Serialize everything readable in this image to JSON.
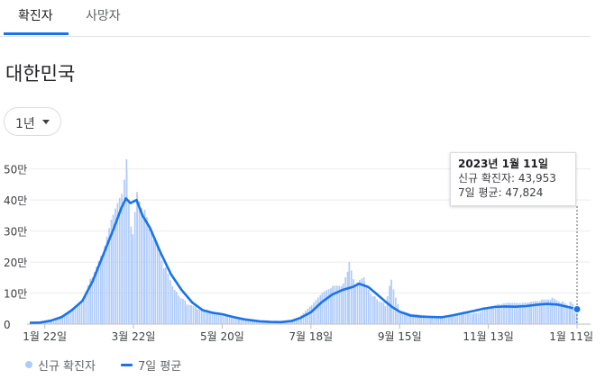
{
  "tabs": [
    {
      "label": "확진자",
      "active": true
    },
    {
      "label": "사망자",
      "active": false
    }
  ],
  "region": "대한민국",
  "period": {
    "label": "1년"
  },
  "tooltip": {
    "date": "2023년 1월 11일",
    "line1": "신규 확진자: 43,953",
    "line2": "7일 평균: 47,824"
  },
  "legend": {
    "bar_label": "신규 확진자",
    "line_label": "7일 평균"
  },
  "colors": {
    "bar": "#aecbfa",
    "line": "#1a73e8",
    "accent": "#1a73e8"
  },
  "chart_data": {
    "type": "bar",
    "title": "",
    "xlabel": "",
    "ylabel": "",
    "ylim": [
      0,
      560000
    ],
    "y_ticks": [
      {
        "value": 0,
        "label": "0"
      },
      {
        "value": 100000,
        "label": "10만"
      },
      {
        "value": 200000,
        "label": "20만"
      },
      {
        "value": 300000,
        "label": "30만"
      },
      {
        "value": 400000,
        "label": "40만"
      },
      {
        "value": 500000,
        "label": "50만"
      }
    ],
    "x_ticks": [
      {
        "date": "2022-01-22",
        "label": "1월 22일"
      },
      {
        "date": "2022-03-22",
        "label": "3월 22일"
      },
      {
        "date": "2022-05-20",
        "label": "5월 20일"
      },
      {
        "date": "2022-07-18",
        "label": "7월 18일"
      },
      {
        "date": "2022-09-15",
        "label": "9월 15일"
      },
      {
        "date": "2022-11-13",
        "label": "11월 13일"
      },
      {
        "date": "2023-01-11",
        "label": "1월 11일"
      }
    ],
    "x_range": [
      "2022-01-12",
      "2023-01-11"
    ],
    "series": [
      {
        "name": "신규 확진자",
        "type": "bar",
        "points": [
          [
            "2022-01-12",
            4000
          ],
          [
            "2022-01-26",
            13000
          ],
          [
            "2022-02-05",
            35000
          ],
          [
            "2022-02-15",
            75000
          ],
          [
            "2022-02-22",
            150000
          ],
          [
            "2022-03-01",
            210000
          ],
          [
            "2022-03-08",
            320000
          ],
          [
            "2022-03-14",
            380000
          ],
          [
            "2022-03-17",
            560000
          ],
          [
            "2022-03-21",
            300000
          ],
          [
            "2022-03-24",
            490000
          ],
          [
            "2022-03-29",
            340000
          ],
          [
            "2022-04-05",
            270000
          ],
          [
            "2022-04-12",
            190000
          ],
          [
            "2022-04-19",
            118000
          ],
          [
            "2022-04-26",
            75000
          ],
          [
            "2022-05-03",
            52000
          ],
          [
            "2022-05-10",
            40000
          ],
          [
            "2022-05-20",
            25000
          ],
          [
            "2022-05-31",
            15000
          ],
          [
            "2022-06-10",
            10000
          ],
          [
            "2022-06-25",
            7000
          ],
          [
            "2022-07-05",
            15000
          ],
          [
            "2022-07-11",
            27000
          ],
          [
            "2022-07-18",
            55000
          ],
          [
            "2022-07-25",
            90000
          ],
          [
            "2022-08-01",
            110000
          ],
          [
            "2022-08-08",
            120000
          ],
          [
            "2022-08-12",
            180000
          ],
          [
            "2022-08-16",
            115000
          ],
          [
            "2022-08-22",
            140000
          ],
          [
            "2022-08-29",
            100000
          ],
          [
            "2022-09-05",
            70000
          ],
          [
            "2022-09-09",
            160000
          ],
          [
            "2022-09-15",
            40000
          ],
          [
            "2022-09-22",
            30000
          ],
          [
            "2022-09-29",
            27000
          ],
          [
            "2022-10-06",
            22000
          ],
          [
            "2022-10-13",
            22000
          ],
          [
            "2022-10-20",
            30000
          ],
          [
            "2022-10-27",
            38000
          ],
          [
            "2022-11-03",
            40000
          ],
          [
            "2022-11-13",
            52000
          ],
          [
            "2022-11-20",
            60000
          ],
          [
            "2022-11-27",
            62000
          ],
          [
            "2022-12-04",
            60000
          ],
          [
            "2022-12-11",
            65000
          ],
          [
            "2022-12-18",
            72000
          ],
          [
            "2022-12-25",
            82000
          ],
          [
            "2023-01-01",
            75000
          ],
          [
            "2023-01-06",
            65000
          ],
          [
            "2023-01-11",
            43953
          ]
        ]
      },
      {
        "name": "7일 평균",
        "type": "line",
        "points": [
          [
            "2022-01-12",
            4000
          ],
          [
            "2022-01-19",
            5000
          ],
          [
            "2022-01-26",
            11000
          ],
          [
            "2022-02-02",
            22000
          ],
          [
            "2022-02-09",
            45000
          ],
          [
            "2022-02-16",
            75000
          ],
          [
            "2022-02-23",
            140000
          ],
          [
            "2022-03-02",
            225000
          ],
          [
            "2022-03-09",
            310000
          ],
          [
            "2022-03-14",
            375000
          ],
          [
            "2022-03-17",
            405000
          ],
          [
            "2022-03-20",
            390000
          ],
          [
            "2022-03-24",
            400000
          ],
          [
            "2022-03-28",
            350000
          ],
          [
            "2022-04-02",
            310000
          ],
          [
            "2022-04-09",
            230000
          ],
          [
            "2022-04-16",
            160000
          ],
          [
            "2022-04-23",
            110000
          ],
          [
            "2022-04-30",
            70000
          ],
          [
            "2022-05-07",
            45000
          ],
          [
            "2022-05-14",
            36000
          ],
          [
            "2022-05-20",
            32000
          ],
          [
            "2022-05-28",
            22000
          ],
          [
            "2022-06-04",
            15000
          ],
          [
            "2022-06-14",
            9000
          ],
          [
            "2022-06-21",
            7000
          ],
          [
            "2022-06-28",
            6500
          ],
          [
            "2022-07-05",
            10000
          ],
          [
            "2022-07-11",
            20000
          ],
          [
            "2022-07-18",
            38000
          ],
          [
            "2022-07-25",
            70000
          ],
          [
            "2022-08-01",
            95000
          ],
          [
            "2022-08-08",
            110000
          ],
          [
            "2022-08-15",
            120000
          ],
          [
            "2022-08-19",
            130000
          ],
          [
            "2022-08-25",
            120000
          ],
          [
            "2022-08-30",
            100000
          ],
          [
            "2022-09-05",
            75000
          ],
          [
            "2022-09-10",
            55000
          ],
          [
            "2022-09-15",
            40000
          ],
          [
            "2022-09-22",
            28000
          ],
          [
            "2022-09-29",
            24000
          ],
          [
            "2022-10-06",
            23000
          ],
          [
            "2022-10-13",
            22000
          ],
          [
            "2022-10-20",
            28000
          ],
          [
            "2022-10-27",
            35000
          ],
          [
            "2022-11-03",
            42000
          ],
          [
            "2022-11-10",
            50000
          ],
          [
            "2022-11-17",
            55000
          ],
          [
            "2022-11-24",
            57000
          ],
          [
            "2022-12-01",
            56000
          ],
          [
            "2022-12-08",
            58000
          ],
          [
            "2022-12-15",
            62000
          ],
          [
            "2022-12-22",
            65000
          ],
          [
            "2022-12-29",
            63000
          ],
          [
            "2023-01-05",
            55000
          ],
          [
            "2023-01-11",
            47824
          ]
        ]
      }
    ],
    "highlight_date": "2023-01-11",
    "grid": true,
    "legend_position": "bottom-left"
  }
}
